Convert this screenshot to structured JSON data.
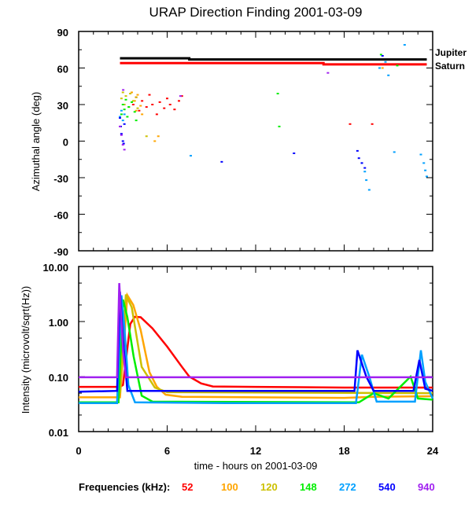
{
  "chart_data": [
    {
      "type": "scatter",
      "title": "URAP Direction Finding  2001-03-09",
      "ylabel": "Azimuthal angle (deg)",
      "xlim": [
        0,
        24
      ],
      "ylim": [
        -90,
        90
      ],
      "yticks": [
        "90",
        "60",
        "30",
        "0",
        "-30",
        "-60",
        "-90"
      ],
      "ytick_values": [
        90,
        60,
        30,
        0,
        -30,
        -60,
        -90
      ],
      "reference_lines": [
        {
          "name": "Jupiter",
          "color": "#000000",
          "points": [
            [
              2.8,
              68
            ],
            [
              7.5,
              68
            ],
            [
              7.5,
              67
            ],
            [
              23.6,
              67
            ]
          ]
        },
        {
          "name": "Saturn",
          "color": "#ff0000",
          "points": [
            [
              2.8,
              64
            ],
            [
              16.6,
              64
            ],
            [
              16.6,
              63
            ],
            [
              23.6,
              63
            ]
          ]
        }
      ],
      "series": [
        {
          "freq": "52",
          "points": [
            [
              3.7,
              30
            ],
            [
              3.9,
              36
            ],
            [
              4.1,
              25
            ],
            [
              4.3,
              33
            ],
            [
              4.6,
              28
            ],
            [
              4.8,
              38
            ],
            [
              5.0,
              30
            ],
            [
              5.3,
              22
            ],
            [
              5.5,
              32
            ],
            [
              5.8,
              27
            ],
            [
              6.0,
              35
            ],
            [
              6.2,
              30
            ],
            [
              6.5,
              26
            ],
            [
              6.8,
              33
            ],
            [
              7.0,
              37
            ],
            [
              19.9,
              14
            ],
            [
              18.4,
              14
            ]
          ]
        },
        {
          "freq": "100",
          "points": [
            [
              3.6,
              40
            ],
            [
              3.8,
              33
            ],
            [
              3.9,
              25
            ],
            [
              4.0,
              38
            ],
            [
              4.2,
              29
            ],
            [
              4.3,
              22
            ],
            [
              5.16,
              0
            ],
            [
              5.4,
              4
            ],
            [
              20.6,
              60
            ]
          ]
        },
        {
          "freq": "120",
          "points": [
            [
              2.9,
              35
            ],
            [
              3.0,
              40
            ],
            [
              3.1,
              30
            ],
            [
              3.2,
              37
            ],
            [
              3.4,
              28
            ],
            [
              3.5,
              39
            ],
            [
              3.7,
              33
            ],
            [
              3.9,
              36
            ],
            [
              4.0,
              27
            ],
            [
              4.6,
              4
            ]
          ]
        },
        {
          "freq": "148",
          "points": [
            [
              2.9,
              22
            ],
            [
              3.0,
              30
            ],
            [
              3.1,
              26
            ],
            [
              3.2,
              34
            ],
            [
              3.3,
              20
            ],
            [
              3.4,
              28
            ],
            [
              3.6,
              32
            ],
            [
              3.8,
              24
            ],
            [
              3.9,
              17
            ],
            [
              13.5,
              39
            ],
            [
              13.6,
              12
            ],
            [
              20.5,
              71
            ],
            [
              21.6,
              62
            ]
          ]
        },
        {
          "freq": "272",
          "points": [
            [
              2.8,
              20
            ],
            [
              2.9,
              25
            ],
            [
              3.0,
              17
            ],
            [
              3.1,
              22
            ],
            [
              7.6,
              -12
            ],
            [
              19.2,
              -18
            ],
            [
              19.4,
              -25
            ],
            [
              19.5,
              -32
            ],
            [
              19.7,
              -40
            ],
            [
              20.4,
              60
            ],
            [
              20.8,
              65
            ],
            [
              21.0,
              54
            ],
            [
              21.4,
              -9
            ],
            [
              22.1,
              79
            ],
            [
              23.2,
              -11
            ],
            [
              23.4,
              -18
            ],
            [
              23.5,
              -24
            ],
            [
              23.6,
              -29
            ]
          ]
        },
        {
          "freq": "540",
          "points": [
            [
              2.8,
              19
            ],
            [
              2.85,
              12
            ],
            [
              2.9,
              6
            ],
            [
              3.0,
              0
            ],
            [
              3.05,
              -2
            ],
            [
              3.1,
              14
            ],
            [
              9.7,
              -17
            ],
            [
              14.6,
              -10
            ],
            [
              18.9,
              -8
            ],
            [
              19.0,
              -14
            ],
            [
              19.2,
              -18
            ],
            [
              19.4,
              -22
            ],
            [
              20.6,
              70
            ]
          ]
        },
        {
          "freq": "940",
          "points": [
            [
              2.8,
              12
            ],
            [
              2.9,
              5
            ],
            [
              3.0,
              -3
            ],
            [
              3.02,
              42
            ],
            [
              3.1,
              -7
            ],
            [
              6.9,
              37
            ],
            [
              16.9,
              56
            ]
          ]
        }
      ]
    },
    {
      "type": "line",
      "ylabel": "Intensity (microvolt/sqrt(Hz))",
      "xlabel": "time - hours on 2001-03-09",
      "xlim": [
        0,
        24
      ],
      "ylim": [
        0.01,
        10
      ],
      "yscale": "log",
      "xticks": [
        "0",
        "6",
        "12",
        "18",
        "24"
      ],
      "xtick_values": [
        0,
        6,
        12,
        18,
        24
      ],
      "yticks": [
        "10.00",
        "1.00",
        "0.10",
        "0.01"
      ],
      "ytick_values": [
        10,
        1,
        0.1,
        0.01
      ],
      "series": [
        {
          "freq": "52",
          "points": [
            [
              0,
              0.065
            ],
            [
              2.8,
              0.065
            ],
            [
              3.0,
              0.07
            ],
            [
              3.5,
              0.9
            ],
            [
              3.8,
              1.22
            ],
            [
              4.2,
              1.2
            ],
            [
              5,
              0.75
            ],
            [
              6,
              0.35
            ],
            [
              7,
              0.15
            ],
            [
              7.5,
              0.1
            ],
            [
              8.3,
              0.075
            ],
            [
              9.1,
              0.066
            ],
            [
              12,
              0.065
            ],
            [
              18,
              0.063
            ],
            [
              24,
              0.063
            ]
          ]
        },
        {
          "freq": "100",
          "points": [
            [
              0,
              0.042
            ],
            [
              2.8,
              0.042
            ],
            [
              3.3,
              3.0
            ],
            [
              3.7,
              2.0
            ],
            [
              4.2,
              0.7
            ],
            [
              4.8,
              0.12
            ],
            [
              5.3,
              0.065
            ],
            [
              5.9,
              0.047
            ],
            [
              7,
              0.043
            ],
            [
              18,
              0.041
            ],
            [
              20,
              0.043
            ],
            [
              24,
              0.044
            ]
          ]
        },
        {
          "freq": "120",
          "points": [
            [
              2.8,
              0.05
            ],
            [
              3.2,
              3.1
            ],
            [
              3.6,
              1.8
            ],
            [
              4.27,
              0.15
            ],
            [
              5.16,
              0.063
            ],
            [
              6,
              0.052
            ],
            [
              24,
              0.05
            ]
          ]
        },
        {
          "freq": "148",
          "points": [
            [
              0,
              0.034
            ],
            [
              2.7,
              0.034
            ],
            [
              3.0,
              2.5
            ],
            [
              3.3,
              1.2
            ],
            [
              3.73,
              0.23
            ],
            [
              4.27,
              0.045
            ],
            [
              5,
              0.035
            ],
            [
              19,
              0.034
            ],
            [
              20,
              0.05
            ],
            [
              21,
              0.04
            ],
            [
              22.5,
              0.1
            ],
            [
              23,
              0.04
            ],
            [
              24,
              0.038
            ]
          ]
        },
        {
          "freq": "272",
          "points": [
            [
              0,
              0.033
            ],
            [
              2.6,
              0.033
            ],
            [
              2.9,
              3.0
            ],
            [
              3.1,
              0.8
            ],
            [
              3.37,
              0.07
            ],
            [
              3.82,
              0.034
            ],
            [
              10,
              0.033
            ],
            [
              18.8,
              0.033
            ],
            [
              19.2,
              0.25
            ],
            [
              19.7,
              0.1
            ],
            [
              20.2,
              0.035
            ],
            [
              22.8,
              0.035
            ],
            [
              23.2,
              0.3
            ],
            [
              23.5,
              0.08
            ],
            [
              24,
              0.04
            ]
          ]
        },
        {
          "freq": "540",
          "points": [
            [
              0,
              0.053
            ],
            [
              2.6,
              0.055
            ],
            [
              2.8,
              3.5
            ],
            [
              3.0,
              0.5
            ],
            [
              3.3,
              0.055
            ],
            [
              18.7,
              0.055
            ],
            [
              18.9,
              0.3
            ],
            [
              19.5,
              0.1
            ],
            [
              20,
              0.055
            ],
            [
              22.7,
              0.055
            ],
            [
              23.1,
              0.2
            ],
            [
              23.5,
              0.06
            ],
            [
              24,
              0.055
            ]
          ]
        },
        {
          "freq": "940",
          "points": [
            [
              0,
              0.097
            ],
            [
              2.6,
              0.097
            ],
            [
              2.75,
              5.0
            ],
            [
              3.0,
              0.3
            ],
            [
              3.2,
              0.097
            ],
            [
              24,
              0.097
            ]
          ]
        }
      ]
    }
  ],
  "legend": {
    "label": "Frequencies (kHz):",
    "placement": "bottom",
    "entries": [
      {
        "freq": "52",
        "color": "#ff0000"
      },
      {
        "freq": "100",
        "color": "#ffa500"
      },
      {
        "freq": "120",
        "color": "#ccc000"
      },
      {
        "freq": "148",
        "color": "#00ee00"
      },
      {
        "freq": "272",
        "color": "#00a0ff"
      },
      {
        "freq": "540",
        "color": "#0000ff"
      },
      {
        "freq": "940",
        "color": "#a020f0"
      }
    ]
  }
}
